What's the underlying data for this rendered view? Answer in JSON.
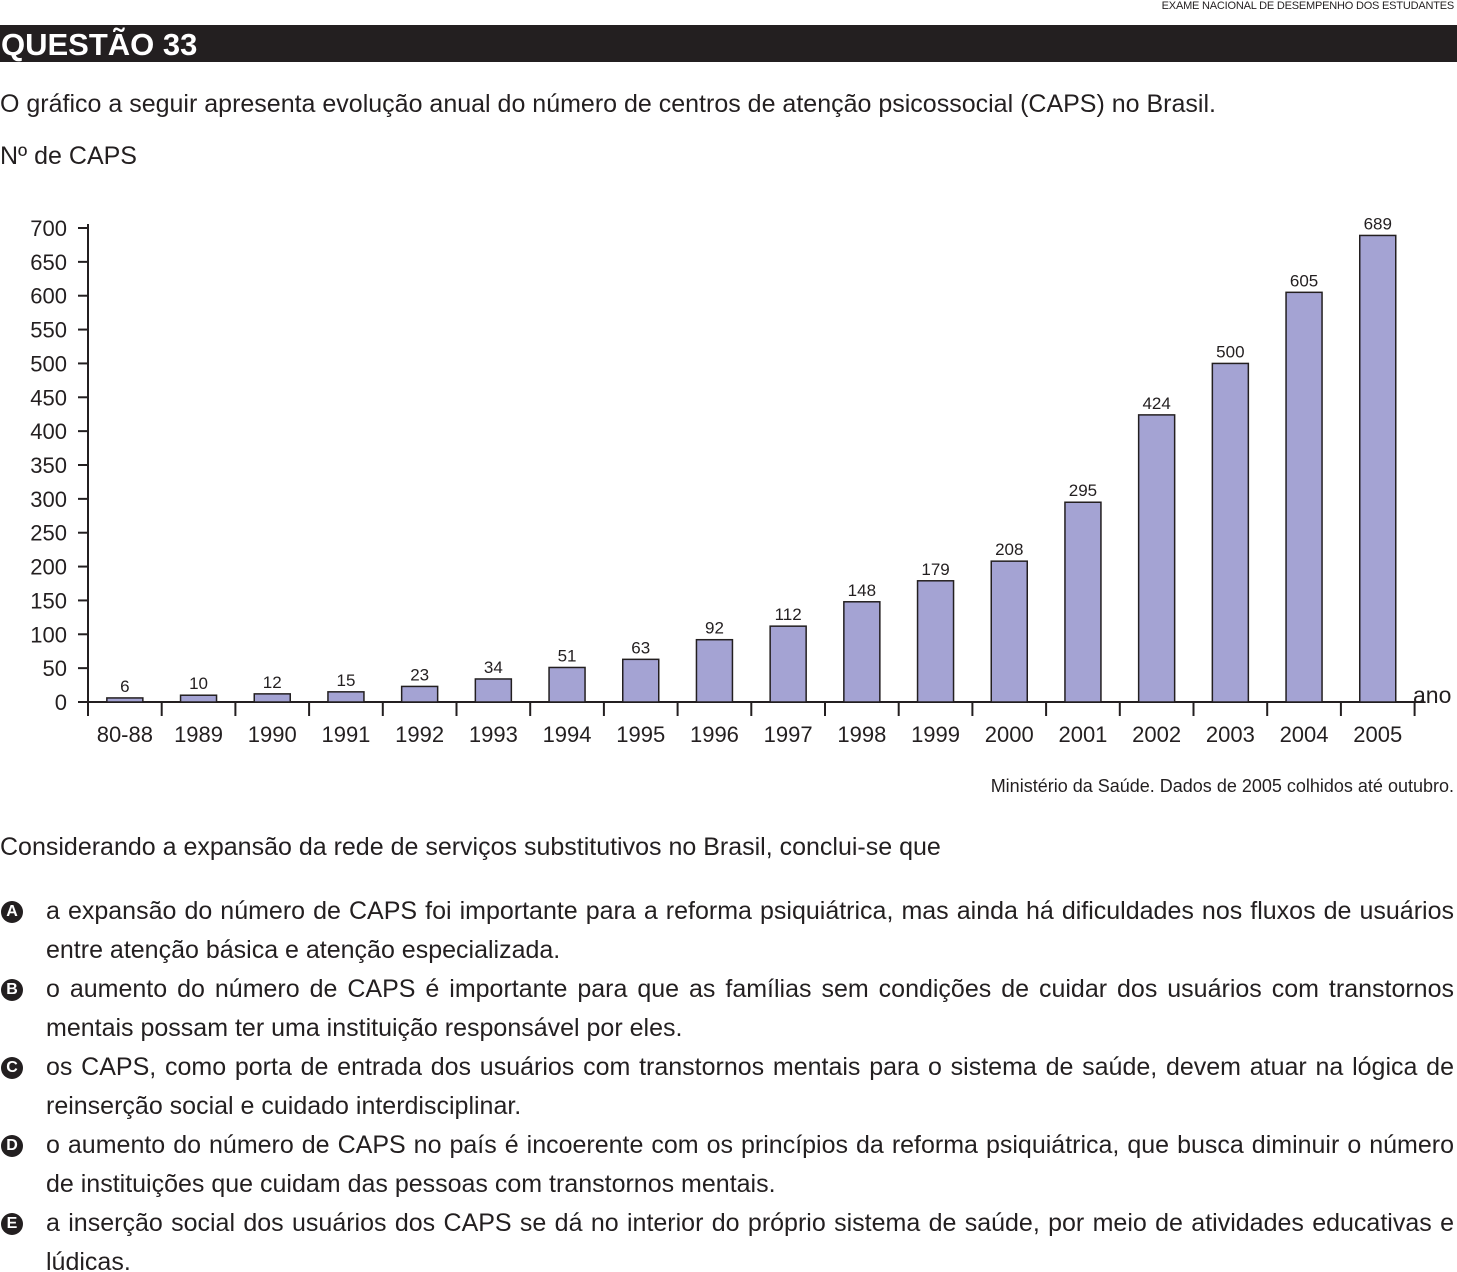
{
  "header": {
    "exam_name": "EXAME NACIONAL DE DESEMPENHO DOS ESTUDANTES",
    "question_title": "QUESTÃO 33"
  },
  "intro_text": "O gráfico a seguir apresenta evolução anual do número de centros de atenção psicossocial (CAPS) no Brasil.",
  "source_text": "Ministério da Saúde. Dados de 2005 colhidos até outubro.",
  "prompt_text": "Considerando a expansão da rede de serviços substitutivos no Brasil, conclui-se que",
  "options": [
    {
      "letter": "A",
      "text": "a expansão do número de CAPS foi importante para a reforma psiquiátrica, mas ainda há dificuldades nos fluxos de usuários entre atenção básica e atenção especializada."
    },
    {
      "letter": "B",
      "text": "o aumento do número de CAPS é importante para que as famílias sem condições de cuidar dos usuários com transtornos mentais possam ter uma instituição responsável por eles."
    },
    {
      "letter": "C",
      "text": "os CAPS, como porta de entrada dos usuários com transtornos mentais para o sistema de saúde, devem atuar na lógica de reinserção social e cuidado interdisciplinar."
    },
    {
      "letter": "D",
      "text": "o aumento do número de CAPS no país é incoerente com os princípios da reforma psiquiátrica, que busca diminuir o número de instituições que cuidam das pessoas com transtornos mentais."
    },
    {
      "letter": "E",
      "text": "a inserção social dos usuários dos CAPS se dá no interior do próprio sistema de saúde, por meio de atividades educativas e lúdicas."
    }
  ],
  "chart_data": {
    "type": "bar",
    "title": "",
    "ylabel": "Nº de CAPS",
    "xlabel": "ano",
    "categories": [
      "80-88",
      "1989",
      "1990",
      "1991",
      "1992",
      "1993",
      "1994",
      "1995",
      "1996",
      "1997",
      "1998",
      "1999",
      "2000",
      "2001",
      "2002",
      "2003",
      "2004",
      "2005"
    ],
    "values": [
      6,
      10,
      12,
      15,
      23,
      34,
      51,
      63,
      92,
      112,
      148,
      179,
      208,
      295,
      424,
      500,
      605,
      689
    ],
    "ylim": [
      0,
      700
    ],
    "yticks": [
      0,
      50,
      100,
      150,
      200,
      250,
      300,
      350,
      400,
      450,
      500,
      550,
      600,
      650,
      700
    ],
    "grid": false,
    "legend": "none",
    "bar_color": "#a4a3d3",
    "bar_stroke": "#231f20"
  }
}
